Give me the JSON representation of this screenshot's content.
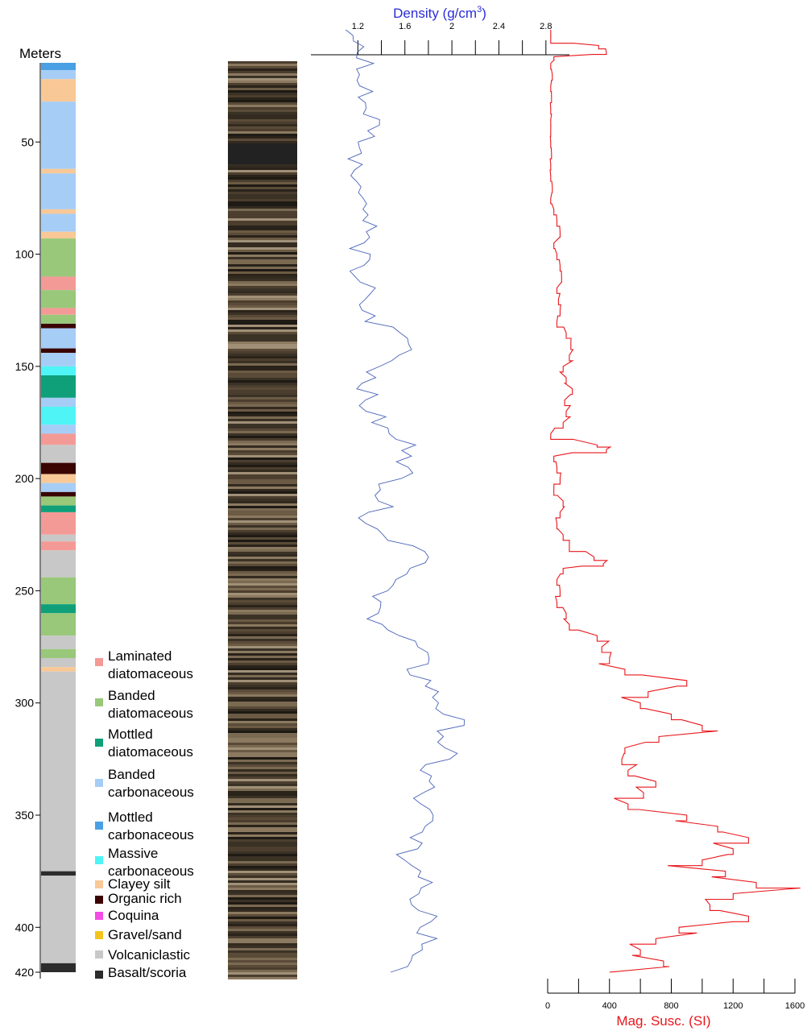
{
  "chart_data": {
    "type": "line",
    "depth_axis": {
      "label": "Meters",
      "range": [
        0,
        420
      ],
      "ticks": [
        50,
        100,
        150,
        200,
        250,
        300,
        350,
        400,
        420
      ]
    },
    "density_axis": {
      "label": "Density (g/cm",
      "label_sup": "3",
      "label_close": ")",
      "range": [
        0.8,
        3.0
      ],
      "labeled_ticks": [
        "1.2",
        "1.6",
        "2",
        "2.4",
        "2.8"
      ],
      "ticks": [
        1.2,
        1.4,
        1.6,
        1.8,
        2.0,
        2.2,
        2.4,
        2.6,
        2.8
      ],
      "color": "#2a2cd8"
    },
    "magsusc_axis": {
      "label": "Mag. Susc. (SI)",
      "range": [
        0,
        1600
      ],
      "labeled_ticks": [
        "0",
        "400",
        "800",
        "1200",
        "1600"
      ],
      "ticks": [
        0,
        200,
        400,
        600,
        800,
        1000,
        1200,
        1400,
        1600
      ],
      "color": "#e8161b"
    },
    "series": [
      {
        "key": "density",
        "color": "#4a64b8",
        "depth": [
          0,
          5,
          10,
          15,
          20,
          25,
          30,
          35,
          40,
          45,
          50,
          55,
          60,
          65,
          70,
          75,
          80,
          85,
          90,
          95,
          100,
          105,
          110,
          115,
          120,
          125,
          130,
          135,
          140,
          145,
          150,
          155,
          160,
          165,
          170,
          175,
          180,
          185,
          190,
          195,
          200,
          205,
          210,
          215,
          220,
          225,
          230,
          235,
          240,
          245,
          250,
          255,
          260,
          265,
          270,
          275,
          280,
          285,
          290,
          295,
          300,
          305,
          310,
          315,
          320,
          325,
          330,
          335,
          340,
          345,
          350,
          355,
          360,
          365,
          370,
          375,
          380,
          385,
          390,
          395,
          400,
          405,
          410,
          415,
          420
        ],
        "values": [
          1.05,
          1.18,
          1.2,
          1.3,
          1.2,
          1.22,
          1.25,
          1.28,
          1.35,
          1.32,
          1.25,
          1.2,
          1.25,
          1.2,
          1.2,
          1.3,
          1.25,
          1.3,
          1.28,
          1.22,
          1.25,
          1.2,
          1.2,
          1.3,
          1.22,
          1.25,
          1.3,
          1.55,
          1.65,
          1.6,
          1.4,
          1.35,
          1.25,
          1.25,
          1.3,
          1.35,
          1.45,
          1.65,
          1.7,
          1.6,
          1.55,
          1.45,
          1.4,
          1.35,
          1.3,
          1.4,
          1.7,
          1.85,
          1.7,
          1.5,
          1.4,
          1.35,
          1.35,
          1.45,
          1.55,
          1.7,
          1.75,
          1.65,
          1.8,
          1.85,
          1.9,
          1.95,
          2.05,
          1.95,
          1.9,
          1.95,
          1.75,
          1.8,
          1.75,
          1.7,
          1.8,
          1.75,
          1.7,
          1.65,
          1.6,
          1.75,
          1.85,
          1.75,
          1.7,
          1.9,
          1.75,
          1.85,
          1.8,
          1.7,
          1.5
        ]
      },
      {
        "key": "magsusc",
        "color": "#e8161b",
        "depth": [
          0,
          5,
          7,
          10,
          12,
          15,
          20,
          25,
          30,
          35,
          40,
          45,
          50,
          55,
          60,
          65,
          70,
          75,
          80,
          85,
          90,
          95,
          100,
          105,
          110,
          115,
          120,
          125,
          130,
          135,
          140,
          145,
          150,
          155,
          160,
          165,
          170,
          175,
          180,
          185,
          187,
          190,
          195,
          200,
          205,
          210,
          215,
          220,
          225,
          230,
          235,
          238,
          240,
          245,
          250,
          255,
          260,
          265,
          270,
          275,
          280,
          285,
          290,
          295,
          300,
          305,
          310,
          315,
          320,
          325,
          330,
          335,
          340,
          345,
          350,
          355,
          360,
          365,
          370,
          375,
          380,
          385,
          390,
          395,
          400,
          405,
          410,
          415,
          420
        ],
        "values": [
          20,
          20,
          330,
          380,
          40,
          20,
          30,
          20,
          25,
          20,
          20,
          20,
          20,
          25,
          20,
          20,
          30,
          20,
          40,
          60,
          80,
          40,
          60,
          80,
          90,
          60,
          70,
          80,
          60,
          120,
          150,
          140,
          100,
          120,
          160,
          110,
          120,
          100,
          20,
          320,
          380,
          40,
          60,
          80,
          40,
          100,
          80,
          60,
          100,
          140,
          300,
          360,
          100,
          60,
          80,
          60,
          120,
          140,
          320,
          350,
          400,
          500,
          900,
          650,
          600,
          800,
          1000,
          720,
          500,
          480,
          520,
          700,
          620,
          520,
          900,
          1100,
          1300,
          1200,
          1000,
          1150,
          1350,
          1200,
          1050,
          1300,
          850,
          700,
          600,
          750,
          400
        ]
      }
    ]
  },
  "core_image_label": "",
  "lithology_column": {
    "intervals": [
      {
        "from": 0,
        "to": 1,
        "code": "banded_diatomaceous"
      },
      {
        "from": 1,
        "to": 9,
        "code": "clayey_silt"
      },
      {
        "from": 9,
        "to": 10,
        "code": "organic_rich"
      },
      {
        "from": 10,
        "to": 14,
        "code": "clayey_silt"
      },
      {
        "from": 14,
        "to": 18,
        "code": "mottled_carbonaceous"
      },
      {
        "from": 18,
        "to": 22,
        "code": "banded_carbonaceous"
      },
      {
        "from": 22,
        "to": 32,
        "code": "clayey_silt"
      },
      {
        "from": 32,
        "to": 62,
        "code": "banded_carbonaceous"
      },
      {
        "from": 62,
        "to": 64,
        "code": "clayey_silt"
      },
      {
        "from": 64,
        "to": 80,
        "code": "banded_carbonaceous"
      },
      {
        "from": 80,
        "to": 82,
        "code": "clayey_silt"
      },
      {
        "from": 82,
        "to": 90,
        "code": "banded_carbonaceous"
      },
      {
        "from": 90,
        "to": 93,
        "code": "clayey_silt"
      },
      {
        "from": 93,
        "to": 110,
        "code": "banded_diatomaceous"
      },
      {
        "from": 110,
        "to": 116,
        "code": "laminated_diatomaceous"
      },
      {
        "from": 116,
        "to": 124,
        "code": "banded_diatomaceous"
      },
      {
        "from": 124,
        "to": 127,
        "code": "laminated_diatomaceous"
      },
      {
        "from": 127,
        "to": 131,
        "code": "banded_diatomaceous"
      },
      {
        "from": 131,
        "to": 133,
        "code": "organic_rich"
      },
      {
        "from": 133,
        "to": 142,
        "code": "banded_carbonaceous"
      },
      {
        "from": 142,
        "to": 144,
        "code": "organic_rich"
      },
      {
        "from": 144,
        "to": 150,
        "code": "banded_carbonaceous"
      },
      {
        "from": 150,
        "to": 154,
        "code": "massive_carbonaceous"
      },
      {
        "from": 154,
        "to": 164,
        "code": "mottled_diatomaceous"
      },
      {
        "from": 164,
        "to": 168,
        "code": "banded_carbonaceous"
      },
      {
        "from": 168,
        "to": 176,
        "code": "massive_carbonaceous"
      },
      {
        "from": 176,
        "to": 180,
        "code": "banded_carbonaceous"
      },
      {
        "from": 180,
        "to": 185,
        "code": "laminated_diatomaceous"
      },
      {
        "from": 185,
        "to": 193,
        "code": "volcaniclastic"
      },
      {
        "from": 193,
        "to": 198,
        "code": "organic_rich"
      },
      {
        "from": 198,
        "to": 202,
        "code": "clayey_silt"
      },
      {
        "from": 202,
        "to": 206,
        "code": "banded_carbonaceous"
      },
      {
        "from": 206,
        "to": 208,
        "code": "organic_rich"
      },
      {
        "from": 208,
        "to": 212,
        "code": "banded_diatomaceous"
      },
      {
        "from": 212,
        "to": 215,
        "code": "mottled_diatomaceous"
      },
      {
        "from": 215,
        "to": 225,
        "code": "laminated_diatomaceous"
      },
      {
        "from": 225,
        "to": 228,
        "code": "volcaniclastic"
      },
      {
        "from": 228,
        "to": 232,
        "code": "laminated_diatomaceous"
      },
      {
        "from": 232,
        "to": 244,
        "code": "volcaniclastic"
      },
      {
        "from": 244,
        "to": 256,
        "code": "banded_diatomaceous"
      },
      {
        "from": 256,
        "to": 260,
        "code": "mottled_diatomaceous"
      },
      {
        "from": 260,
        "to": 270,
        "code": "banded_diatomaceous"
      },
      {
        "from": 270,
        "to": 276,
        "code": "volcaniclastic"
      },
      {
        "from": 276,
        "to": 280,
        "code": "banded_diatomaceous"
      },
      {
        "from": 280,
        "to": 284,
        "code": "volcaniclastic"
      },
      {
        "from": 284,
        "to": 286,
        "code": "clayey_silt"
      },
      {
        "from": 286,
        "to": 375,
        "code": "volcaniclastic"
      },
      {
        "from": 375,
        "to": 377,
        "code": "basalt_scoria"
      },
      {
        "from": 377,
        "to": 416,
        "code": "volcaniclastic"
      },
      {
        "from": 416,
        "to": 420,
        "code": "basalt_scoria"
      }
    ]
  },
  "legend": [
    {
      "code": "laminated_diatomaceous",
      "lines": [
        "Laminated",
        "diatomaceous"
      ],
      "color": "#f49a96"
    },
    {
      "code": "banded_diatomaceous",
      "lines": [
        "Banded",
        "diatomaceous"
      ],
      "color": "#99c87a"
    },
    {
      "code": "mottled_diatomaceous",
      "lines": [
        "Mottled",
        "diatomaceous"
      ],
      "color": "#0fa07a"
    },
    {
      "code": "banded_carbonaceous",
      "lines": [
        "Banded",
        "carbonaceous"
      ],
      "color": "#a6cdf6"
    },
    {
      "code": "mottled_carbonaceous",
      "lines": [
        "Mottled",
        "carbonaceous"
      ],
      "color": "#4aa0e4"
    },
    {
      "code": "massive_carbonaceous",
      "lines": [
        "Massive",
        "carbonaceous"
      ],
      "color": "#4ef4f6"
    },
    {
      "code": "clayey_silt",
      "lines": [
        "Clayey silt"
      ],
      "color": "#f8c896"
    },
    {
      "code": "organic_rich",
      "lines": [
        "Organic rich"
      ],
      "color": "#3a0402"
    },
    {
      "code": "coquina",
      "lines": [
        "Coquina"
      ],
      "color": "#f44ce4"
    },
    {
      "code": "gravel_sand",
      "lines": [
        "Gravel/sand"
      ],
      "color": "#f4c41e"
    },
    {
      "code": "volcaniclastic",
      "lines": [
        "Volcaniclastic"
      ],
      "color": "#c8c8c8"
    },
    {
      "code": "basalt_scoria",
      "lines": [
        "Basalt/scoria"
      ],
      "color": "#2c2c2c"
    }
  ]
}
